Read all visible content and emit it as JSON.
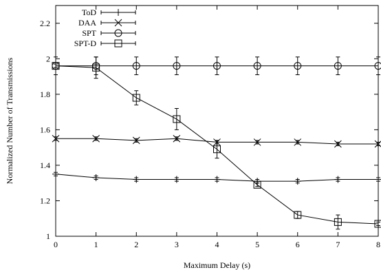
{
  "chart_data": {
    "type": "line",
    "title": "",
    "xlabel": "Maximum Delay (s)",
    "ylabel": "Normalized Number of Transmissions",
    "xlim": [
      0,
      8
    ],
    "ylim": [
      1,
      2.3
    ],
    "x": [
      0,
      1,
      2,
      3,
      4,
      5,
      6,
      7,
      8
    ],
    "xticks": [
      "0",
      "1",
      "2",
      "3",
      "4",
      "5",
      "6",
      "7",
      "8"
    ],
    "yticks": [
      {
        "value": 1,
        "label": "1"
      },
      {
        "value": 1.2,
        "label": "1.2"
      },
      {
        "value": 1.4,
        "label": "1.4"
      },
      {
        "value": 1.6,
        "label": "1.6"
      },
      {
        "value": 1.8,
        "label": "1.8"
      },
      {
        "value": 2,
        "label": "2"
      },
      {
        "value": 2.2,
        "label": "2.2"
      }
    ],
    "grid": false,
    "legend_position": "top-left",
    "series": [
      {
        "name": "ToD",
        "marker": "plus",
        "values": [
          1.35,
          1.33,
          1.32,
          1.32,
          1.32,
          1.31,
          1.31,
          1.32,
          1.32
        ],
        "errors": [
          0.01,
          0.01,
          0.01,
          0.01,
          0.01,
          0.01,
          0.01,
          0.01,
          0.01
        ]
      },
      {
        "name": "DAA",
        "marker": "cross",
        "values": [
          1.55,
          1.55,
          1.54,
          1.55,
          1.53,
          1.53,
          1.53,
          1.52,
          1.52
        ],
        "errors": [
          0.01,
          0.01,
          0.01,
          0.01,
          0.01,
          0.01,
          0.01,
          0.01,
          0.01
        ]
      },
      {
        "name": "SPT",
        "marker": "circle",
        "values": [
          1.96,
          1.96,
          1.96,
          1.96,
          1.96,
          1.96,
          1.96,
          1.96,
          1.96
        ],
        "errors": [
          0.05,
          0.05,
          0.05,
          0.05,
          0.05,
          0.05,
          0.05,
          0.05,
          0.05
        ]
      },
      {
        "name": "SPT-D",
        "marker": "square",
        "values": [
          1.96,
          1.95,
          1.78,
          1.66,
          1.49,
          1.29,
          1.12,
          1.08,
          1.07
        ],
        "errors": [
          0.01,
          0.06,
          0.04,
          0.06,
          0.05,
          0.01,
          0.02,
          0.04,
          0.01
        ]
      }
    ]
  }
}
